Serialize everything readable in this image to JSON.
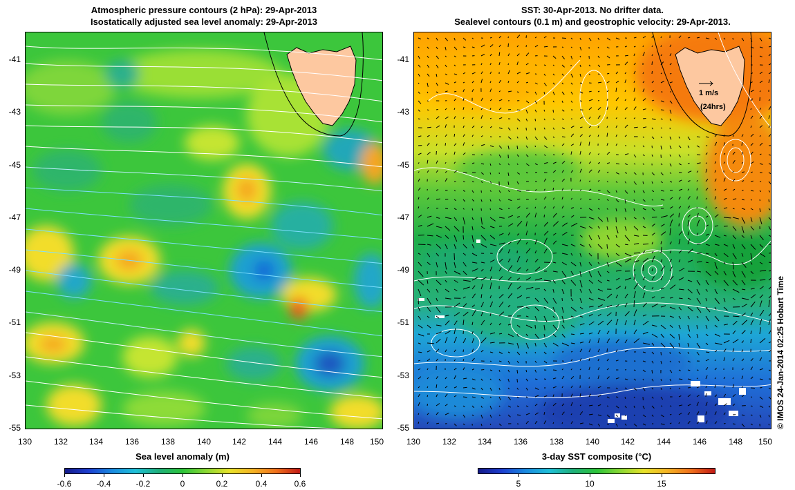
{
  "left_panel": {
    "title_line1": "Atmospheric pressure contours (2 hPa): 29-Apr-2013",
    "title_line2": "Isostatically adjusted sea level anomaly: 29-Apr-2013",
    "colorbar_title": "Sea level anomaly (m)",
    "colorbar_ticks": [
      "-0.6",
      "-0.4",
      "-0.2",
      "0",
      "0.2",
      "0.4",
      "0.6"
    ]
  },
  "right_panel": {
    "title_line1": "SST: 30-Apr-2013. No drifter data.",
    "title_line2": "Sealevel contours (0.1 m) and geostrophic velocity: 29-Apr-2013.",
    "colorbar_title": "3-day SST composite (°C)",
    "colorbar_ticks": [
      "5",
      "10",
      "15"
    ],
    "velocity_scale_label": "1 m/s",
    "velocity_scale_sub": "(24hrs)"
  },
  "axes": {
    "lat_labels": [
      "-41",
      "-43",
      "-45",
      "-47",
      "-49",
      "-51",
      "-53",
      "-55"
    ],
    "lon_labels": [
      "130",
      "132",
      "134",
      "136",
      "138",
      "140",
      "142",
      "144",
      "146",
      "148",
      "150"
    ]
  },
  "credit": "© IMOS 24-Jan-2014 02:25 Hobart Time",
  "colors": {
    "land": "#fdc8a0",
    "sla_bg": "#3cc63c",
    "sst_warm": "#ff9a00",
    "sst_mid": "#22b34a",
    "sst_cold": "#1f6fd8"
  }
}
